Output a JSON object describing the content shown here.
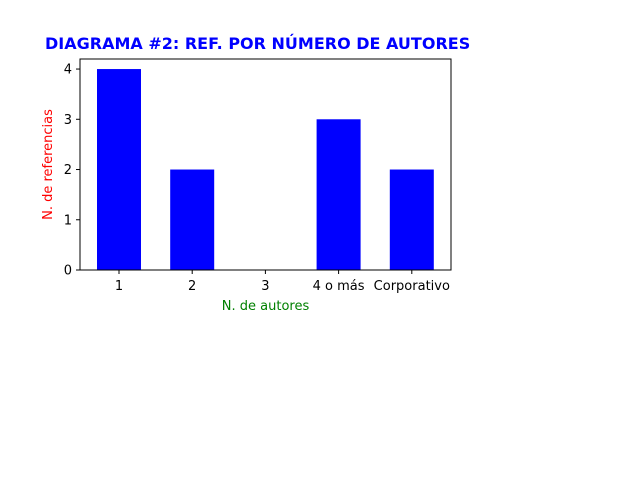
{
  "chart_data": {
    "type": "bar",
    "title": "DIAGRAMA #2: REF. POR NÚMERO DE AUTORES",
    "xlabel": "N. de autores",
    "ylabel": "N. de referencias",
    "categories": [
      "1",
      "2",
      "3",
      "4 o más",
      "Corporativo"
    ],
    "values": [
      4,
      2,
      0,
      3,
      2
    ],
    "ylim": [
      0,
      4.2
    ],
    "yticks": [
      "0",
      "1",
      "2",
      "3",
      "4"
    ],
    "grid": false,
    "legend": "none"
  },
  "colors": {
    "bar": "#0000ff",
    "title": "#0000ff",
    "xlabel": "#008000",
    "ylabel": "#ff0000",
    "axis": "#000000"
  }
}
